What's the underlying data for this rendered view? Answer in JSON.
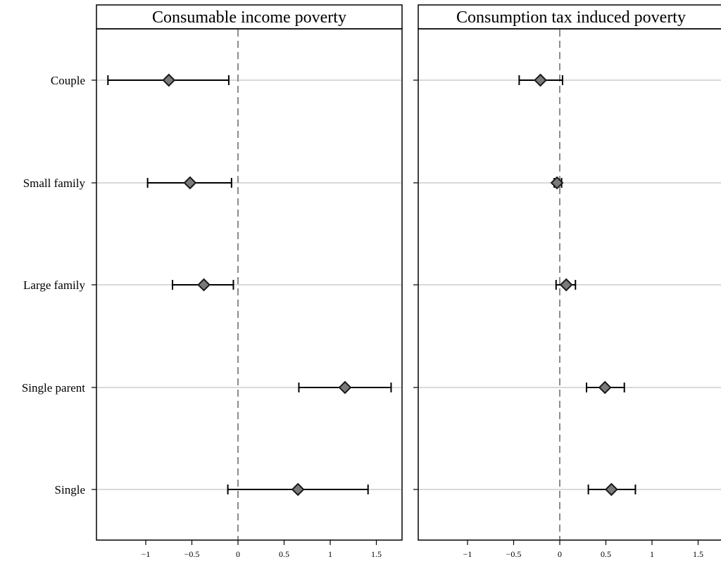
{
  "chart_data": {
    "type": "coefficient-plot",
    "categories": [
      "Couple",
      "Small family",
      "Large family",
      "Single parent",
      "Single"
    ],
    "xlim": [
      -1.5,
      1.8
    ],
    "xticks": [
      -1,
      -0.5,
      0,
      0.5,
      1,
      1.5
    ],
    "xtick_labels": [
      "−1",
      "−0.5",
      "0",
      "0.5",
      "1",
      "1.5"
    ],
    "reference_line": 0,
    "marker": "diamond",
    "colors": {
      "marker_fill": "#7a7a7a",
      "marker_edge": "#1a1a1a",
      "ci": "#000000",
      "row_line": "#d9d9d9",
      "ref_line": "#8c8c8c",
      "frame": "#000000"
    },
    "panels": [
      {
        "title": "Consumable income poverty",
        "estimates": [
          {
            "category": "Couple",
            "value": -0.75,
            "ci": [
              -1.41,
              -0.1
            ]
          },
          {
            "category": "Small family",
            "value": -0.52,
            "ci": [
              -0.98,
              -0.07
            ]
          },
          {
            "category": "Large family",
            "value": -0.37,
            "ci": [
              -0.71,
              -0.05
            ]
          },
          {
            "category": "Single parent",
            "value": 1.16,
            "ci": [
              0.66,
              1.66
            ]
          },
          {
            "category": "Single",
            "value": 0.65,
            "ci": [
              -0.11,
              1.41
            ]
          }
        ]
      },
      {
        "title": "Consumption tax induced poverty",
        "estimates": [
          {
            "category": "Couple",
            "value": -0.21,
            "ci": [
              -0.44,
              0.03
            ]
          },
          {
            "category": "Small family",
            "value": -0.03,
            "ci": [
              -0.06,
              0.02
            ]
          },
          {
            "category": "Large family",
            "value": 0.07,
            "ci": [
              -0.04,
              0.17
            ]
          },
          {
            "category": "Single parent",
            "value": 0.49,
            "ci": [
              0.29,
              0.7
            ]
          },
          {
            "category": "Single",
            "value": 0.56,
            "ci": [
              0.31,
              0.82
            ]
          }
        ]
      }
    ]
  }
}
